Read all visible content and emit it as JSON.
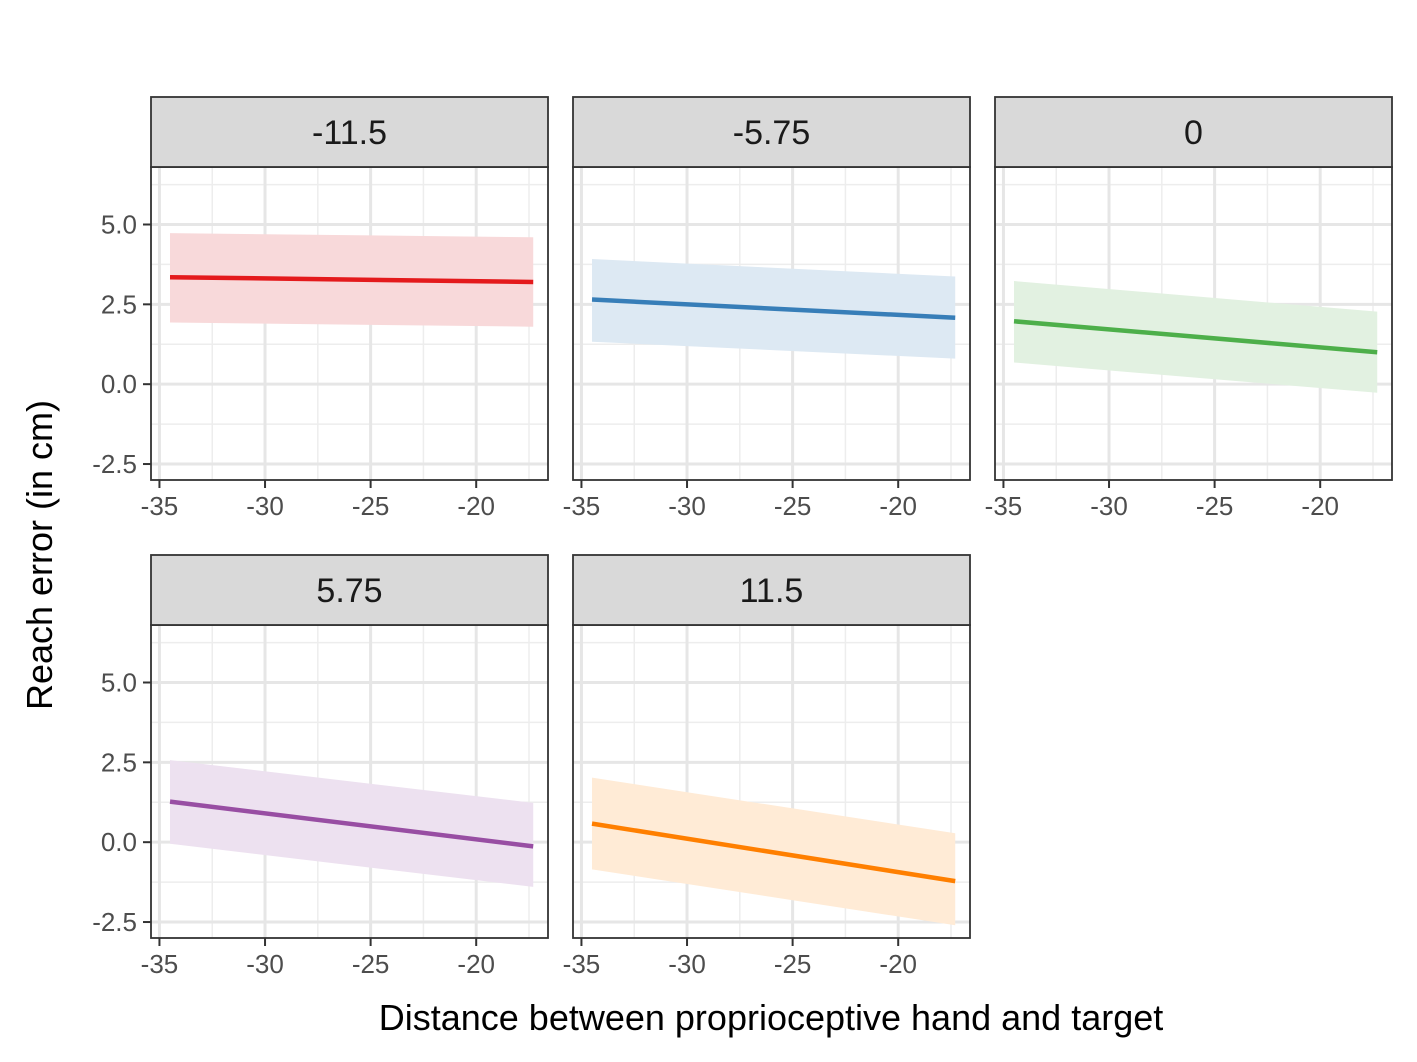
{
  "chart_data": {
    "type": "line",
    "layout": "faceted",
    "xlabel": "Distance between proprioceptive hand and target",
    "ylabel": "Reach error (in cm)",
    "xlim": [
      -35.4,
      -16.6
    ],
    "ylim": [
      -3.0,
      6.8
    ],
    "x_ticks": [
      -35,
      -30,
      -25,
      -20
    ],
    "x_tick_labels": [
      "-35",
      "-30",
      "-25",
      "-20"
    ],
    "y_ticks": [
      -2.5,
      0.0,
      2.5,
      5.0
    ],
    "y_tick_labels": [
      "-2.5",
      "0.0",
      "2.5",
      "5.0"
    ],
    "grid": true,
    "legend": "none",
    "panels": [
      {
        "label": "-11.5",
        "color": "#e41a1c",
        "fill": "#f8d9da",
        "x": [
          -34.5,
          -17.3
        ],
        "y": [
          3.35,
          3.2
        ],
        "ymin": [
          1.93,
          1.8
        ],
        "ymax": [
          4.73,
          4.6
        ]
      },
      {
        "label": "-5.75",
        "color": "#377eb8",
        "fill": "#dde9f3",
        "x": [
          -34.5,
          -17.3
        ],
        "y": [
          2.65,
          2.08
        ],
        "ymin": [
          1.33,
          0.8
        ],
        "ymax": [
          3.92,
          3.37
        ]
      },
      {
        "label": "0",
        "color": "#4daf4a",
        "fill": "#e2f1e1",
        "x": [
          -34.5,
          -17.3
        ],
        "y": [
          1.97,
          1.0
        ],
        "ymin": [
          0.68,
          -0.27
        ],
        "ymax": [
          3.23,
          2.27
        ]
      },
      {
        "label": "5.75",
        "color": "#984ea3",
        "fill": "#ede1f0",
        "x": [
          -34.5,
          -17.3
        ],
        "y": [
          1.27,
          -0.13
        ],
        "ymin": [
          -0.05,
          -1.4
        ],
        "ymax": [
          2.57,
          1.23
        ]
      },
      {
        "label": "11.5",
        "color": "#ff7f00",
        "fill": "#ffebd6",
        "x": [
          -34.5,
          -17.3
        ],
        "y": [
          0.58,
          -1.22
        ],
        "ymin": [
          -0.85,
          -2.6
        ],
        "ymax": [
          2.02,
          0.28
        ]
      }
    ]
  }
}
